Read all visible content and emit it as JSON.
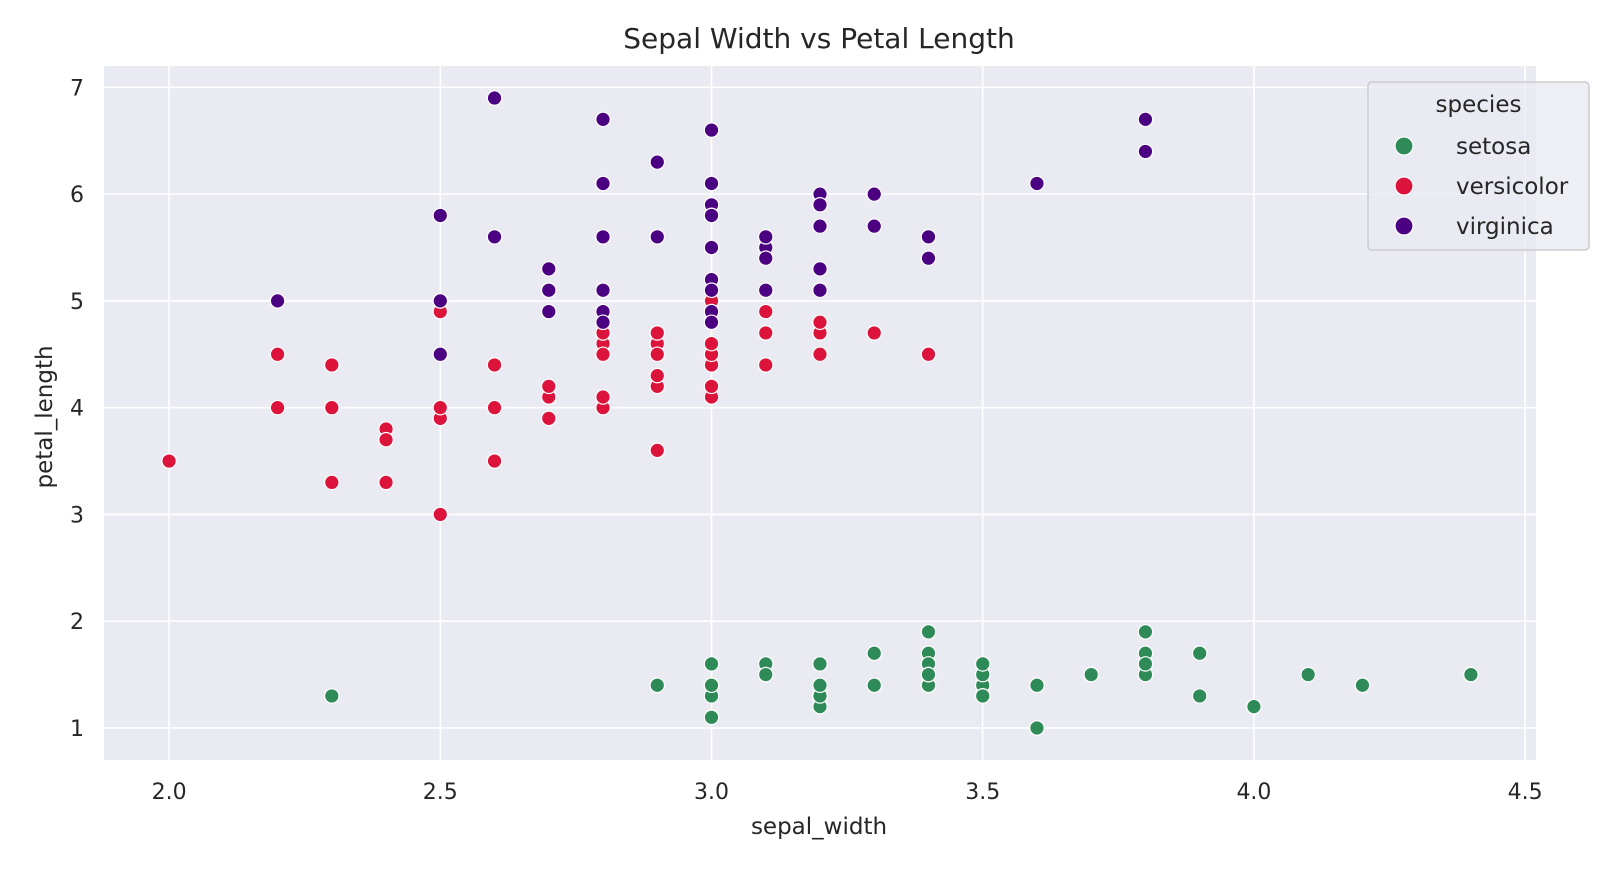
{
  "chart_data": {
    "type": "scatter",
    "title": "Sepal Width vs Petal Length",
    "xlabel": "sepal_width",
    "ylabel": "petal_length",
    "xlim": [
      1.88,
      4.52
    ],
    "ylim": [
      0.7,
      7.2
    ],
    "xticks": [
      2.0,
      2.5,
      3.0,
      3.5,
      4.0,
      4.5
    ],
    "xtick_labels": [
      "2.0",
      "2.5",
      "3.0",
      "3.5",
      "4.0",
      "4.5"
    ],
    "yticks": [
      1,
      2,
      3,
      4,
      5,
      6,
      7
    ],
    "ytick_labels": [
      "1",
      "2",
      "3",
      "4",
      "5",
      "6",
      "7"
    ],
    "grid": true,
    "background_color": "#EAEAF2",
    "legend": {
      "title": "species",
      "placement": "upper right"
    },
    "series": [
      {
        "name": "setosa",
        "color": "#2E8B57",
        "points": [
          [
            3.5,
            1.4
          ],
          [
            3.0,
            1.4
          ],
          [
            3.2,
            1.3
          ],
          [
            3.1,
            1.5
          ],
          [
            3.6,
            1.4
          ],
          [
            3.9,
            1.7
          ],
          [
            3.4,
            1.4
          ],
          [
            3.4,
            1.5
          ],
          [
            2.9,
            1.4
          ],
          [
            3.1,
            1.5
          ],
          [
            3.7,
            1.5
          ],
          [
            3.4,
            1.6
          ],
          [
            3.0,
            1.4
          ],
          [
            3.0,
            1.1
          ],
          [
            4.0,
            1.2
          ],
          [
            4.4,
            1.5
          ],
          [
            3.9,
            1.3
          ],
          [
            3.5,
            1.4
          ],
          [
            3.8,
            1.7
          ],
          [
            3.8,
            1.5
          ],
          [
            3.4,
            1.7
          ],
          [
            3.7,
            1.5
          ],
          [
            3.6,
            1.0
          ],
          [
            3.3,
            1.7
          ],
          [
            3.4,
            1.9
          ],
          [
            3.0,
            1.6
          ],
          [
            3.4,
            1.6
          ],
          [
            3.5,
            1.5
          ],
          [
            3.4,
            1.4
          ],
          [
            3.2,
            1.6
          ],
          [
            3.1,
            1.6
          ],
          [
            3.4,
            1.5
          ],
          [
            4.1,
            1.5
          ],
          [
            4.2,
            1.4
          ],
          [
            3.1,
            1.5
          ],
          [
            3.2,
            1.2
          ],
          [
            3.5,
            1.3
          ],
          [
            3.6,
            1.4
          ],
          [
            3.0,
            1.3
          ],
          [
            3.4,
            1.5
          ],
          [
            3.5,
            1.3
          ],
          [
            2.3,
            1.3
          ],
          [
            3.2,
            1.3
          ],
          [
            3.5,
            1.6
          ],
          [
            3.8,
            1.9
          ],
          [
            3.0,
            1.4
          ],
          [
            3.8,
            1.6
          ],
          [
            3.2,
            1.4
          ],
          [
            3.7,
            1.5
          ],
          [
            3.3,
            1.4
          ]
        ]
      },
      {
        "name": "versicolor",
        "color": "#DC143C",
        "points": [
          [
            3.2,
            4.7
          ],
          [
            3.2,
            4.5
          ],
          [
            3.1,
            4.9
          ],
          [
            2.3,
            4.0
          ],
          [
            2.8,
            4.6
          ],
          [
            2.8,
            4.5
          ],
          [
            3.3,
            4.7
          ],
          [
            2.4,
            3.3
          ],
          [
            2.9,
            4.6
          ],
          [
            2.7,
            3.9
          ],
          [
            2.0,
            3.5
          ],
          [
            3.0,
            4.2
          ],
          [
            2.2,
            4.0
          ],
          [
            2.9,
            4.7
          ],
          [
            2.9,
            3.6
          ],
          [
            3.1,
            4.4
          ],
          [
            3.0,
            4.5
          ],
          [
            2.7,
            4.1
          ],
          [
            2.2,
            4.5
          ],
          [
            2.5,
            3.9
          ],
          [
            3.2,
            4.8
          ],
          [
            2.8,
            4.0
          ],
          [
            2.5,
            4.9
          ],
          [
            2.8,
            4.7
          ],
          [
            2.9,
            4.3
          ],
          [
            3.0,
            4.4
          ],
          [
            2.8,
            4.8
          ],
          [
            3.0,
            5.0
          ],
          [
            2.9,
            4.5
          ],
          [
            2.6,
            3.5
          ],
          [
            2.4,
            3.8
          ],
          [
            2.4,
            3.7
          ],
          [
            2.7,
            3.9
          ],
          [
            2.7,
            5.1
          ],
          [
            3.0,
            4.5
          ],
          [
            3.4,
            4.5
          ],
          [
            3.1,
            4.7
          ],
          [
            2.3,
            4.4
          ],
          [
            3.0,
            4.1
          ],
          [
            2.5,
            4.0
          ],
          [
            2.6,
            4.4
          ],
          [
            3.0,
            4.6
          ],
          [
            2.6,
            4.0
          ],
          [
            2.3,
            3.3
          ],
          [
            2.7,
            4.2
          ],
          [
            3.0,
            4.2
          ],
          [
            2.9,
            4.2
          ],
          [
            2.9,
            4.3
          ],
          [
            2.5,
            3.0
          ],
          [
            2.8,
            4.1
          ]
        ]
      },
      {
        "name": "virginica",
        "color": "#4B0082",
        "points": [
          [
            3.3,
            6.0
          ],
          [
            2.7,
            5.1
          ],
          [
            3.0,
            5.9
          ],
          [
            2.9,
            5.6
          ],
          [
            3.0,
            5.8
          ],
          [
            3.0,
            6.6
          ],
          [
            2.5,
            4.5
          ],
          [
            2.9,
            6.3
          ],
          [
            2.5,
            5.8
          ],
          [
            3.6,
            6.1
          ],
          [
            3.2,
            5.1
          ],
          [
            2.7,
            5.3
          ],
          [
            3.0,
            5.5
          ],
          [
            2.5,
            5.0
          ],
          [
            2.8,
            5.1
          ],
          [
            3.2,
            5.3
          ],
          [
            3.0,
            5.5
          ],
          [
            3.8,
            6.7
          ],
          [
            2.6,
            6.9
          ],
          [
            2.2,
            5.0
          ],
          [
            3.2,
            5.7
          ],
          [
            2.8,
            4.9
          ],
          [
            2.8,
            6.7
          ],
          [
            2.7,
            4.9
          ],
          [
            3.3,
            5.7
          ],
          [
            3.2,
            6.0
          ],
          [
            2.8,
            4.8
          ],
          [
            3.0,
            4.9
          ],
          [
            2.8,
            5.6
          ],
          [
            3.0,
            5.8
          ],
          [
            2.8,
            6.1
          ],
          [
            3.8,
            6.4
          ],
          [
            2.8,
            5.6
          ],
          [
            2.8,
            5.1
          ],
          [
            2.6,
            5.6
          ],
          [
            3.0,
            6.1
          ],
          [
            3.4,
            5.6
          ],
          [
            3.1,
            5.5
          ],
          [
            3.0,
            4.8
          ],
          [
            3.1,
            5.4
          ],
          [
            3.1,
            5.6
          ],
          [
            3.1,
            5.1
          ],
          [
            2.7,
            5.1
          ],
          [
            3.2,
            5.9
          ],
          [
            3.3,
            5.7
          ],
          [
            3.0,
            5.2
          ],
          [
            2.5,
            5.0
          ],
          [
            3.0,
            5.2
          ],
          [
            3.4,
            5.4
          ],
          [
            3.0,
            5.1
          ]
        ]
      }
    ]
  }
}
